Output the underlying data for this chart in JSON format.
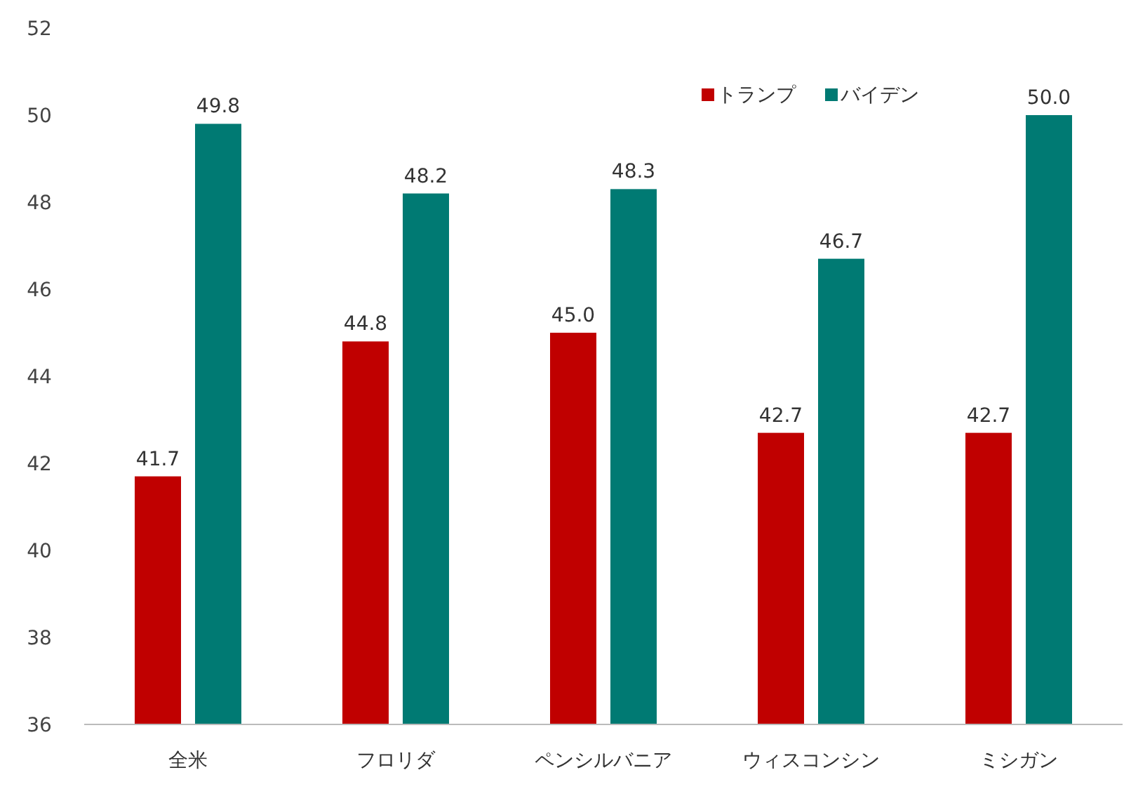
{
  "chart_data": {
    "type": "bar",
    "categories": [
      "全米",
      "フロリダ",
      "ペンシルバニア",
      "ウィスコンシン",
      "ミシガン"
    ],
    "series": [
      {
        "name": "トランプ",
        "color": "#c00000",
        "values": [
          41.7,
          44.8,
          45.0,
          42.7,
          42.7
        ],
        "value_labels": [
          "41.7",
          "44.8",
          "45.0",
          "42.7",
          "42.7"
        ]
      },
      {
        "name": "バイデン",
        "color": "#007a73",
        "values": [
          49.8,
          48.2,
          48.3,
          46.7,
          50.0
        ],
        "value_labels": [
          "49.8",
          "48.2",
          "48.3",
          "46.7",
          "50.0"
        ]
      }
    ],
    "ylim": [
      36,
      52
    ],
    "yticks": [
      36,
      38,
      40,
      42,
      44,
      46,
      48,
      50,
      52
    ],
    "grid": false,
    "legend": "top right"
  }
}
